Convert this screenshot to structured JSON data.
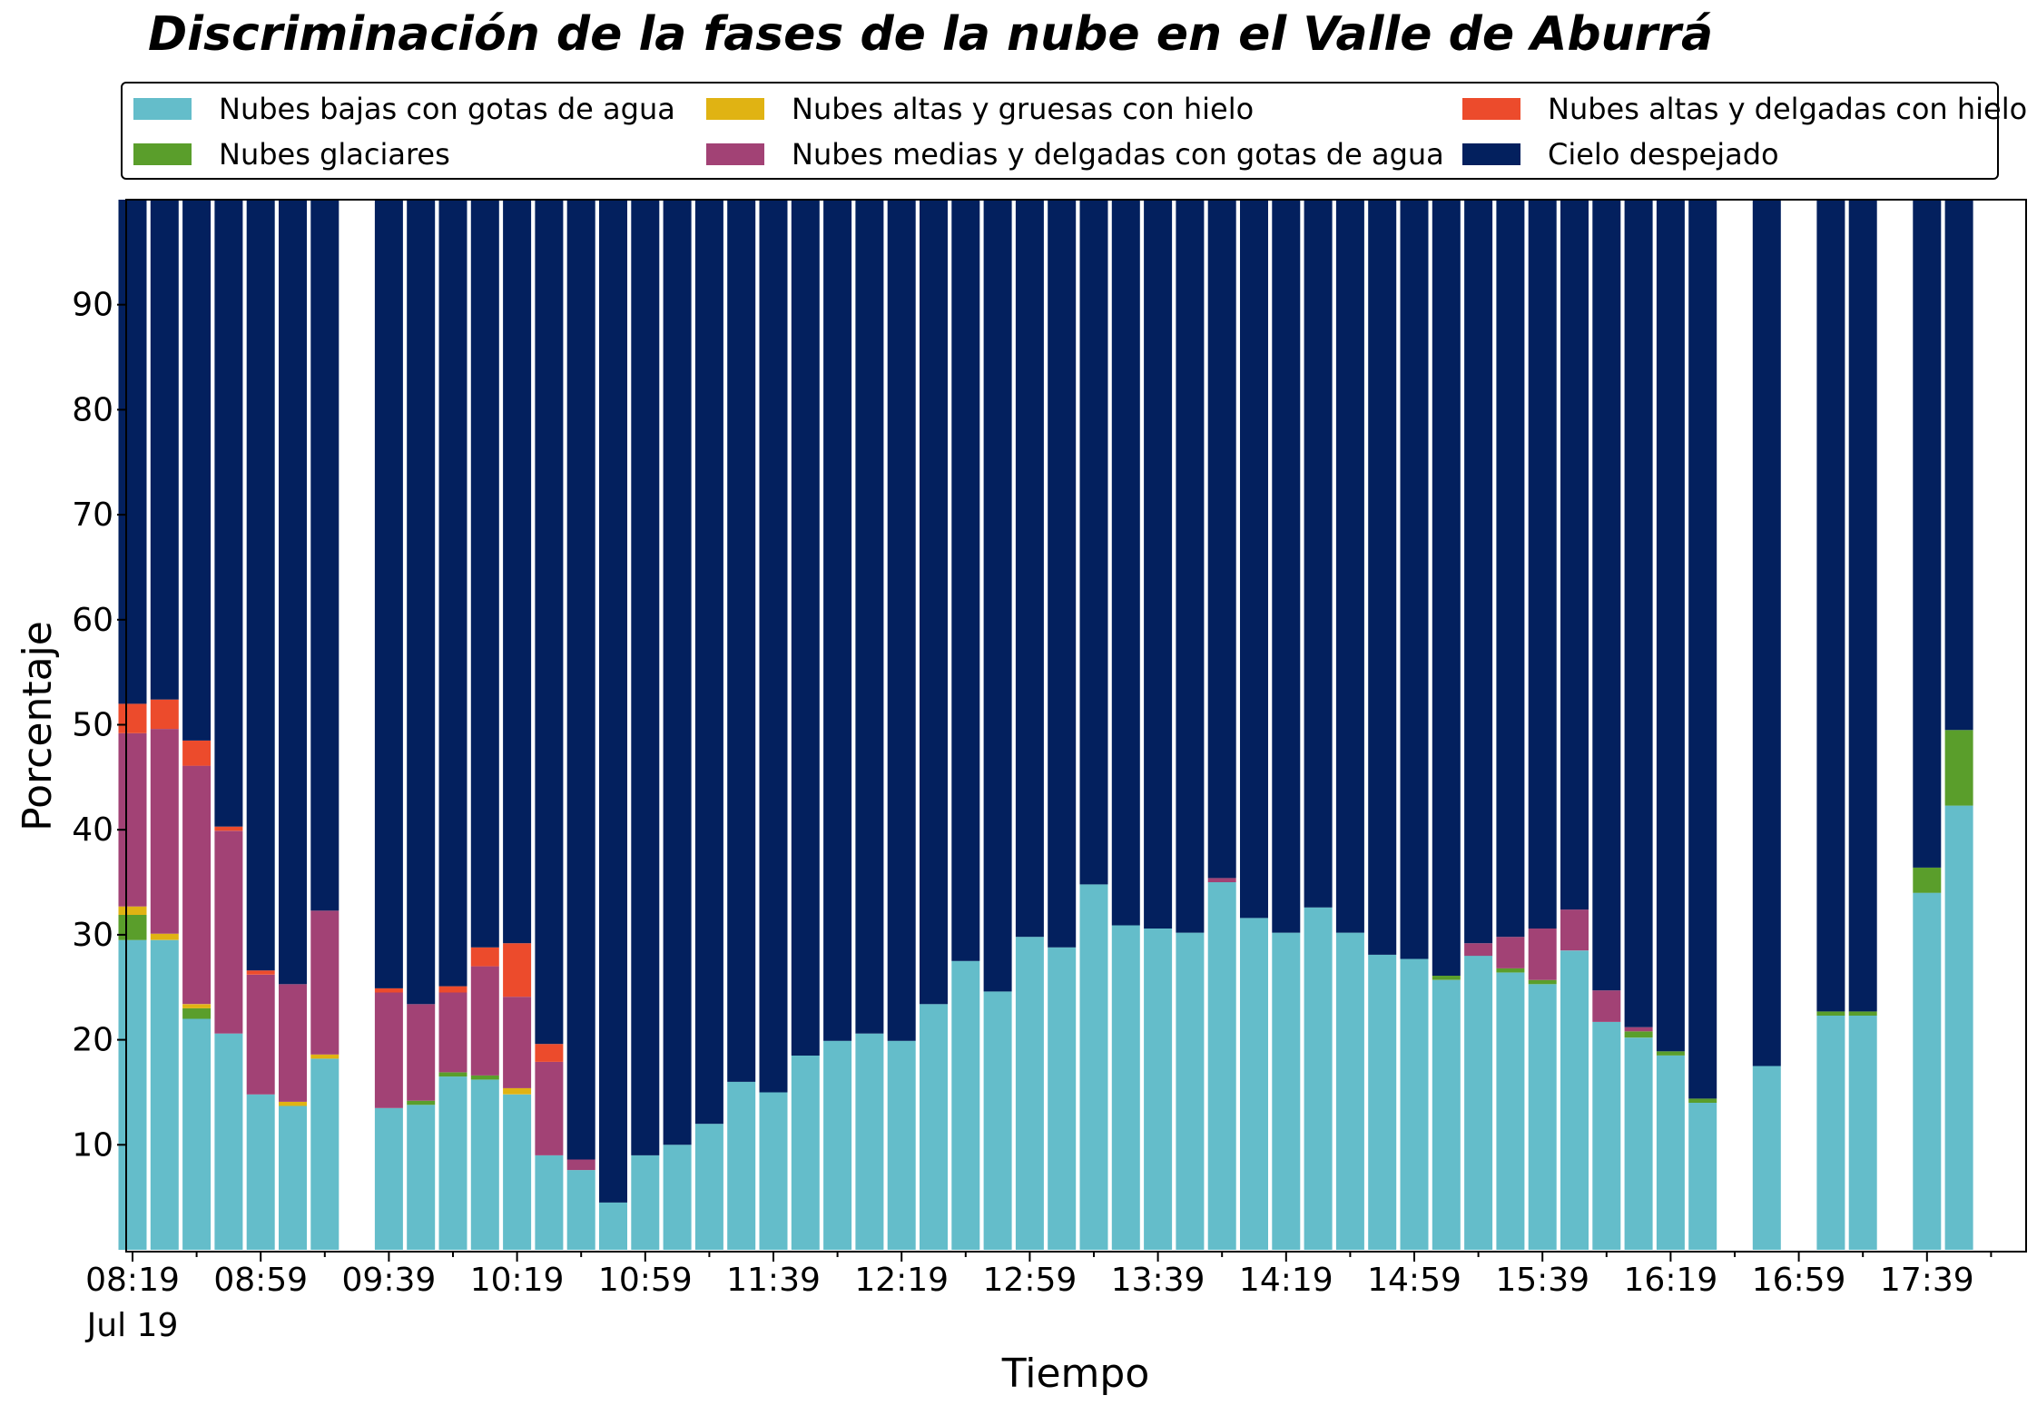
{
  "chart_data": {
    "type": "bar",
    "stacked": true,
    "title": "Discriminación de la fases de la nube en el Valle de Aburrá",
    "xlabel": "Tiempo",
    "ylabel": "Porcentaje",
    "ylim": [
      0,
      100
    ],
    "yticks": [
      10,
      20,
      30,
      40,
      50,
      60,
      70,
      80,
      90
    ],
    "xtick_labels": [
      "08:19",
      "08:59",
      "09:39",
      "10:19",
      "10:59",
      "11:39",
      "12:19",
      "12:59",
      "13:39",
      "14:19",
      "14:59",
      "15:39",
      "16:19",
      "16:59",
      "17:39"
    ],
    "xtick_sublabel": "Jul 19",
    "legend_position": "top",
    "grid": false,
    "time_slots": [
      "08:19",
      "08:29",
      "08:39",
      "08:49",
      "08:59",
      "09:09",
      "09:19",
      "09:29",
      "09:39",
      "09:49",
      "09:59",
      "10:09",
      "10:19",
      "10:29",
      "10:39",
      "10:49",
      "10:59",
      "11:09",
      "11:19",
      "11:29",
      "11:39",
      "11:49",
      "11:59",
      "12:09",
      "12:19",
      "12:29",
      "12:39",
      "12:49",
      "12:59",
      "13:09",
      "13:19",
      "13:29",
      "13:39",
      "13:49",
      "13:59",
      "14:09",
      "14:19",
      "14:29",
      "14:39",
      "14:49",
      "14:59",
      "15:09",
      "15:19",
      "15:29",
      "15:39",
      "15:49",
      "15:59",
      "16:09",
      "16:19",
      "16:29",
      "16:39",
      "16:49",
      "16:59",
      "17:09",
      "17:19",
      "17:29",
      "17:39",
      "17:49"
    ],
    "series": [
      {
        "name": "Nubes bajas con gotas de agua",
        "color": "#64bdca",
        "values": [
          29.5,
          29.5,
          22,
          20.6,
          14.8,
          13.7,
          18.2,
          null,
          13.5,
          13.8,
          16.5,
          16.2,
          14.8,
          9,
          7.6,
          4.5,
          9,
          10,
          12,
          16,
          15,
          18.5,
          19.9,
          20.6,
          19.9,
          23.4,
          27.5,
          24.6,
          29.8,
          28.8,
          34.8,
          30.9,
          30.6,
          30.2,
          35,
          31.6,
          30.2,
          32.6,
          30.2,
          28.1,
          27.7,
          25.7,
          28,
          26.4,
          25.3,
          28.5,
          21.7,
          20.2,
          18.5,
          14,
          null,
          17.5,
          null,
          22.3,
          22.3,
          null,
          34,
          42.3
        ]
      },
      {
        "name": "Nubes glaciares",
        "color": "#5a9e2b",
        "values": [
          2.4,
          0,
          1,
          0,
          0,
          0,
          0,
          null,
          0,
          0.4,
          0.4,
          0.4,
          0,
          0,
          0,
          0,
          0,
          0,
          0,
          0,
          0,
          0,
          0,
          0,
          0,
          0,
          0,
          0,
          0,
          0,
          0,
          0,
          0,
          0,
          0,
          0,
          0,
          0,
          0,
          0,
          0,
          0.4,
          0,
          0.4,
          0.4,
          0,
          0,
          0.6,
          0.4,
          0.4,
          null,
          0,
          null,
          0.4,
          0.4,
          null,
          2.4,
          7.2
        ]
      },
      {
        "name": "Nubes altas y gruesas con hielo",
        "color": "#e0b313",
        "values": [
          0.8,
          0.6,
          0.4,
          0,
          0,
          0.4,
          0.4,
          null,
          0,
          0,
          0,
          0,
          0.6,
          0,
          0,
          0,
          0,
          0,
          0,
          0,
          0,
          0,
          0,
          0,
          0,
          0,
          0,
          0,
          0,
          0,
          0,
          0,
          0,
          0,
          0,
          0,
          0,
          0,
          0,
          0,
          0,
          0,
          0,
          0,
          0,
          0,
          0,
          0,
          0,
          0,
          null,
          0,
          null,
          0,
          0,
          null,
          0,
          0
        ]
      },
      {
        "name": "Nubes medias y delgadas con gotas de agua",
        "color": "#a24275",
        "values": [
          16.5,
          19.5,
          22.7,
          19.3,
          11.4,
          11.2,
          13.7,
          null,
          11,
          9.2,
          7.6,
          10.4,
          8.7,
          8.9,
          1,
          0,
          0,
          0,
          0,
          0,
          0,
          0,
          0,
          0,
          0,
          0,
          0,
          0,
          0,
          0,
          0,
          0,
          0,
          0,
          0.4,
          0,
          0,
          0,
          0,
          0,
          0,
          0,
          1.2,
          3,
          4.9,
          3.9,
          3,
          0.4,
          0,
          0,
          null,
          0,
          null,
          0,
          0,
          null,
          0,
          0
        ]
      },
      {
        "name": "Nubes altas y delgadas con hielo",
        "color": "#ec4b2c",
        "values": [
          2.8,
          2.8,
          2.4,
          0.4,
          0.4,
          0,
          0,
          null,
          0.4,
          0,
          0.6,
          1.8,
          5.1,
          1.7,
          0,
          0,
          0,
          0,
          0,
          0,
          0,
          0,
          0,
          0,
          0,
          0,
          0,
          0,
          0,
          0,
          0,
          0,
          0,
          0,
          0,
          0,
          0,
          0,
          0,
          0,
          0,
          0,
          0,
          0,
          0,
          0,
          0,
          0,
          0,
          0,
          null,
          0,
          null,
          0,
          0,
          null,
          0,
          0
        ]
      },
      {
        "name": "Cielo despejado",
        "color": "#03205e",
        "values": [
          48,
          47.6,
          51.5,
          59.7,
          73.4,
          74.7,
          67.7,
          null,
          75.1,
          76.6,
          74.9,
          71.2,
          70.8,
          80.4,
          91.4,
          95.5,
          91,
          90,
          88,
          84,
          85,
          81.5,
          80.1,
          79.4,
          80.1,
          76.6,
          72.5,
          75.4,
          70.2,
          71.2,
          65.2,
          69.1,
          69.4,
          69.8,
          64.6,
          68.4,
          69.8,
          67.4,
          69.8,
          71.9,
          72.3,
          73.9,
          70.8,
          70.2,
          69.4,
          67.6,
          75.3,
          78.8,
          81.1,
          85.6,
          null,
          82.5,
          null,
          77.3,
          77.3,
          null,
          63.6,
          50.5
        ]
      }
    ]
  }
}
